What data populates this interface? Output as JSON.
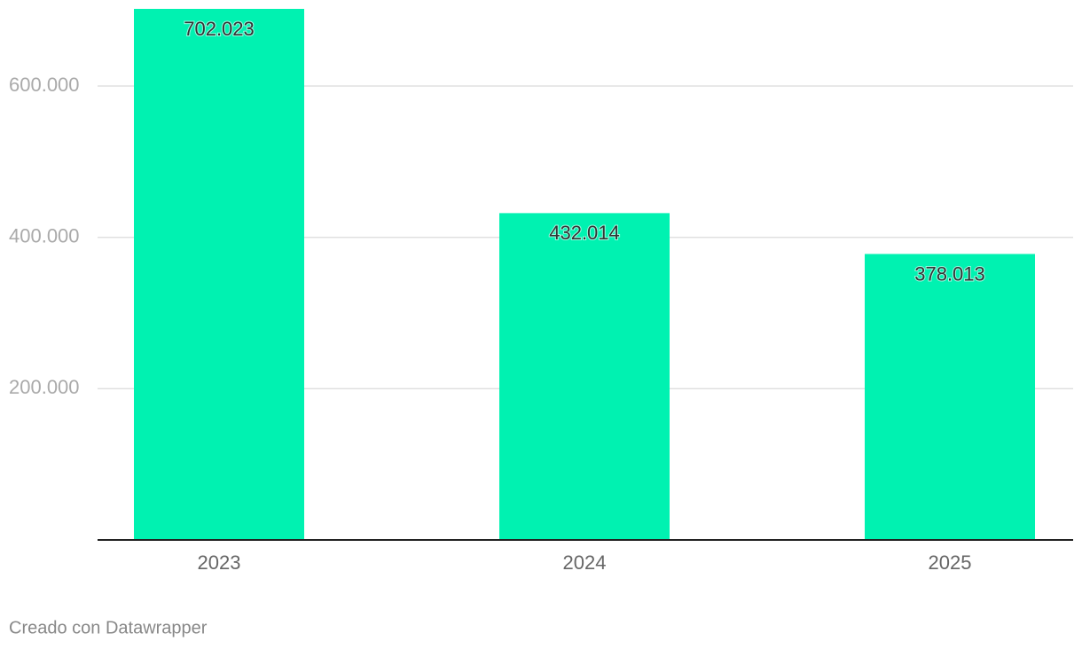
{
  "chart_data": {
    "type": "bar",
    "categories": [
      "2023",
      "2024",
      "2025"
    ],
    "values": [
      702023,
      432014,
      378013
    ],
    "value_labels": [
      "702.023",
      "432.014",
      "378.013"
    ],
    "color": "#00f2b1",
    "ylim": [
      0,
      702023
    ],
    "yticks": [
      {
        "value": 200000,
        "label": "200.000"
      },
      {
        "value": 400000,
        "label": "400.000"
      },
      {
        "value": 600000,
        "label": "600.000"
      }
    ],
    "grid": true,
    "credit": "Creado con Datawrapper"
  }
}
